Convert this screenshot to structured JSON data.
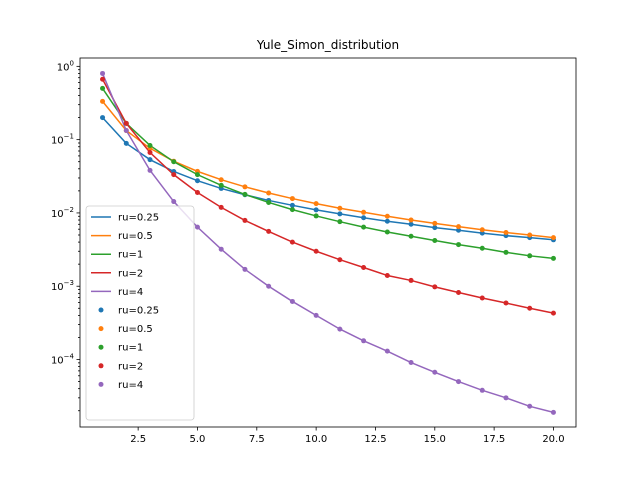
{
  "chart_data": {
    "type": "line",
    "title": "Yule_Simon_distribution",
    "xlabel": "",
    "ylabel": "",
    "yscale": "log",
    "xlim": [
      0.05,
      20.95
    ],
    "ylim": [
      1.2e-05,
      1.3
    ],
    "xticks": [
      2.5,
      5.0,
      7.5,
      10.0,
      12.5,
      15.0,
      17.5,
      20.0
    ],
    "xtick_labels": [
      "2.5",
      "5.0",
      "7.5",
      "10.0",
      "12.5",
      "15.0",
      "17.5",
      "20.0"
    ],
    "yticks": [
      0.0001,
      0.001,
      0.01,
      0.1,
      1
    ],
    "ytick_labels": [
      "10",
      "10",
      "10",
      "10",
      "10"
    ],
    "ytick_exponents": [
      "−4",
      "−3",
      "−2",
      "−1",
      "0"
    ],
    "grid": false,
    "legend_position": "lower-left",
    "x": [
      1,
      2,
      3,
      4,
      5,
      6,
      7,
      8,
      9,
      10,
      11,
      12,
      13,
      14,
      15,
      16,
      17,
      18,
      19,
      20
    ],
    "series": [
      {
        "name": "ru=0.25",
        "color": "#1f77b4",
        "values": [
          0.2,
          0.0889,
          0.0533,
          0.0368,
          0.0275,
          0.0216,
          0.0177,
          0.0148,
          0.0127,
          0.011,
          0.0097,
          0.0086,
          0.0077,
          0.007,
          0.0063,
          0.0058,
          0.0053,
          0.0049,
          0.0046,
          0.0043
        ]
      },
      {
        "name": "ru=0.5",
        "color": "#ff7f0e",
        "values": [
          0.333,
          0.133,
          0.0762,
          0.0508,
          0.0369,
          0.0284,
          0.0227,
          0.0187,
          0.0157,
          0.0134,
          0.0116,
          0.0102,
          0.009,
          0.008,
          0.0072,
          0.0065,
          0.0059,
          0.0054,
          0.005,
          0.0046
        ]
      },
      {
        "name": "ru=1",
        "color": "#2ca02c",
        "values": [
          0.5,
          0.1667,
          0.0833,
          0.05,
          0.0333,
          0.0238,
          0.0179,
          0.0139,
          0.0111,
          0.0091,
          0.0076,
          0.0064,
          0.0055,
          0.0048,
          0.0042,
          0.0037,
          0.0033,
          0.0029,
          0.0026,
          0.0024
        ]
      },
      {
        "name": "ru=2",
        "color": "#d62728",
        "values": [
          0.667,
          0.1667,
          0.0667,
          0.0333,
          0.019,
          0.0119,
          0.0079,
          0.0056,
          0.004,
          0.003,
          0.0023,
          0.0018,
          0.0014,
          0.0012,
          0.00098,
          0.00082,
          0.00069,
          0.00059,
          0.0005,
          0.00043
        ]
      },
      {
        "name": "ru=4",
        "color": "#9467bd",
        "values": [
          0.8,
          0.1333,
          0.0381,
          0.0143,
          0.0064,
          0.0032,
          0.0017,
          0.001,
          0.00062,
          0.0004,
          0.00026,
          0.00018,
          0.00013,
          9.1e-05,
          6.7e-05,
          5e-05,
          3.8e-05,
          3e-05,
          2.3e-05,
          1.9e-05
        ]
      }
    ],
    "legend": {
      "line_entries": [
        "ru=0.25",
        "ru=0.5",
        "ru=1",
        "ru=2",
        "ru=4"
      ],
      "scatter_entries": [
        "ru=0.25",
        "ru=0.5",
        "ru=1",
        "ru=2",
        "ru=4"
      ]
    }
  }
}
